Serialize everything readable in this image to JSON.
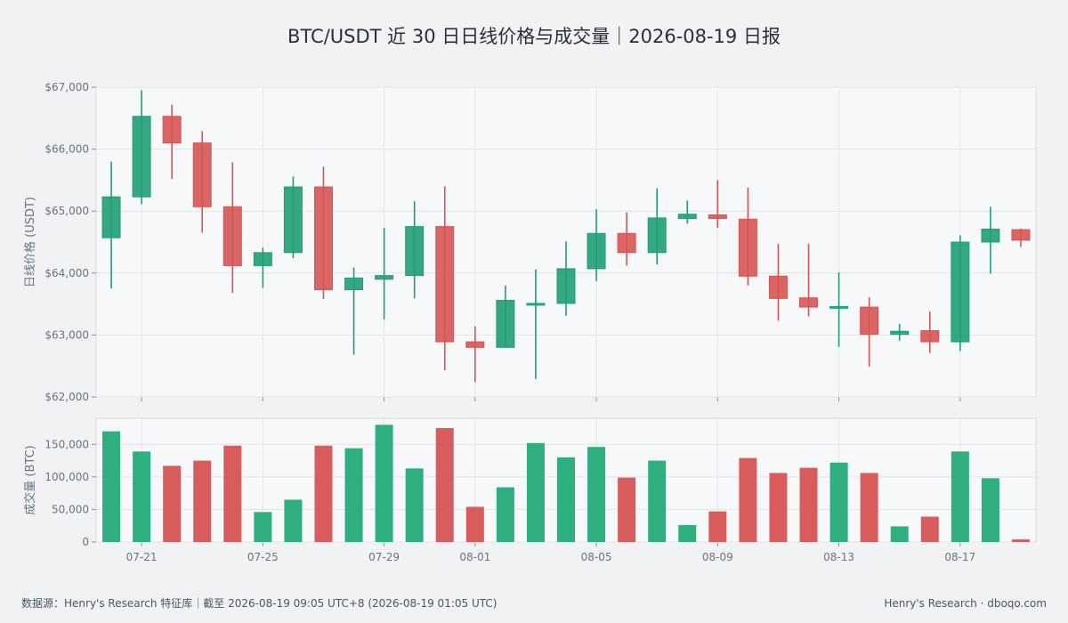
{
  "title": "BTC/USDT 近 30 日日线价格与成交量｜2026-08-19 日报",
  "footer": {
    "left": "数据源：Henry's Research 特征库｜截至 2026-08-19 09:05 UTC+8 (2026-08-19 01:05 UTC)",
    "right": "Henry's Research · dboqo.com"
  },
  "colors": {
    "up": "#1f9e74",
    "down": "#d65454",
    "up_volume": "#2fae80",
    "down_volume": "#d95c5c",
    "plot_bg": "#f7f8fa",
    "grid": "#e1e4e8"
  },
  "chart_data": [
    {
      "type": "candlestick",
      "ylabel": "日线价格 (USDT)",
      "ylim": [
        62000,
        67000
      ],
      "yticks": [
        62000,
        63000,
        64000,
        65000,
        66000,
        67000
      ],
      "ytick_labels": [
        "$62,000",
        "$63,000",
        "$64,000",
        "$65,000",
        "$66,000",
        "$67,000"
      ],
      "grid": true,
      "dates": [
        "07-20",
        "07-21",
        "07-22",
        "07-23",
        "07-24",
        "07-25",
        "07-26",
        "07-27",
        "07-28",
        "07-29",
        "07-30",
        "07-31",
        "08-01",
        "08-02",
        "08-03",
        "08-04",
        "08-05",
        "08-06",
        "08-07",
        "08-08",
        "08-09",
        "08-10",
        "08-11",
        "08-12",
        "08-13",
        "08-14",
        "08-15",
        "08-16",
        "08-17",
        "08-18",
        "08-19"
      ],
      "open": [
        64570,
        65230,
        66530,
        66100,
        65070,
        64120,
        64330,
        65390,
        63730,
        63900,
        63960,
        64750,
        62890,
        62800,
        63500,
        63510,
        64070,
        64640,
        64330,
        64880,
        64940,
        64870,
        63950,
        63600,
        63450,
        63450,
        63010,
        63070,
        62890,
        64500,
        64700
      ],
      "high": [
        65800,
        66950,
        66720,
        66290,
        65790,
        64410,
        65560,
        65720,
        64090,
        64730,
        65160,
        65400,
        63140,
        63800,
        64060,
        64510,
        65030,
        64980,
        65370,
        65170,
        65500,
        65380,
        64470,
        64470,
        64010,
        63610,
        63180,
        63380,
        64610,
        65070,
        64720
      ],
      "low": [
        63750,
        65110,
        65520,
        64650,
        63680,
        63760,
        64240,
        63580,
        62680,
        63250,
        63590,
        62430,
        62240,
        62800,
        62290,
        63310,
        63870,
        64120,
        64140,
        64800,
        64730,
        63800,
        63230,
        63300,
        62810,
        62490,
        62910,
        62710,
        62740,
        63990,
        64420
      ],
      "close": [
        65230,
        66530,
        66100,
        65070,
        64120,
        64330,
        65390,
        63730,
        63920,
        63960,
        64750,
        62890,
        62800,
        63560,
        63510,
        64070,
        64640,
        64330,
        64890,
        64950,
        64880,
        63950,
        63590,
        63450,
        63460,
        63010,
        63060,
        62890,
        64500,
        64710,
        64530
      ],
      "xtick_labels": [
        "07-21",
        "07-25",
        "07-29",
        "08-01",
        "08-05",
        "08-09",
        "08-13",
        "08-17"
      ],
      "xtick_dates": [
        "07-21",
        "07-25",
        "07-29",
        "08-01",
        "08-05",
        "08-09",
        "08-13",
        "08-17"
      ]
    },
    {
      "type": "bar",
      "ylabel": "成交量 (BTC)",
      "ylim": [
        0,
        190000
      ],
      "yticks": [
        0,
        50000,
        100000,
        150000
      ],
      "ytick_labels": [
        "0",
        "50,000",
        "100,000",
        "150,000"
      ],
      "grid": true,
      "dates": [
        "07-20",
        "07-21",
        "07-22",
        "07-23",
        "07-24",
        "07-25",
        "07-26",
        "07-27",
        "07-28",
        "07-29",
        "07-30",
        "07-31",
        "08-01",
        "08-02",
        "08-03",
        "08-04",
        "08-05",
        "08-06",
        "08-07",
        "08-08",
        "08-09",
        "08-10",
        "08-11",
        "08-12",
        "08-13",
        "08-14",
        "08-15",
        "08-16",
        "08-17",
        "08-18",
        "08-19"
      ],
      "values": [
        170000,
        139000,
        117000,
        125000,
        148000,
        46000,
        65000,
        148000,
        144000,
        180000,
        113000,
        175000,
        54000,
        84000,
        152000,
        130000,
        146000,
        99000,
        125000,
        26000,
        47000,
        129000,
        106000,
        114000,
        122000,
        106000,
        24000,
        39000,
        139000,
        98000,
        4000
      ],
      "xtick_labels": [
        "07-21",
        "07-25",
        "07-29",
        "08-01",
        "08-05",
        "08-09",
        "08-13",
        "08-17"
      ]
    }
  ]
}
